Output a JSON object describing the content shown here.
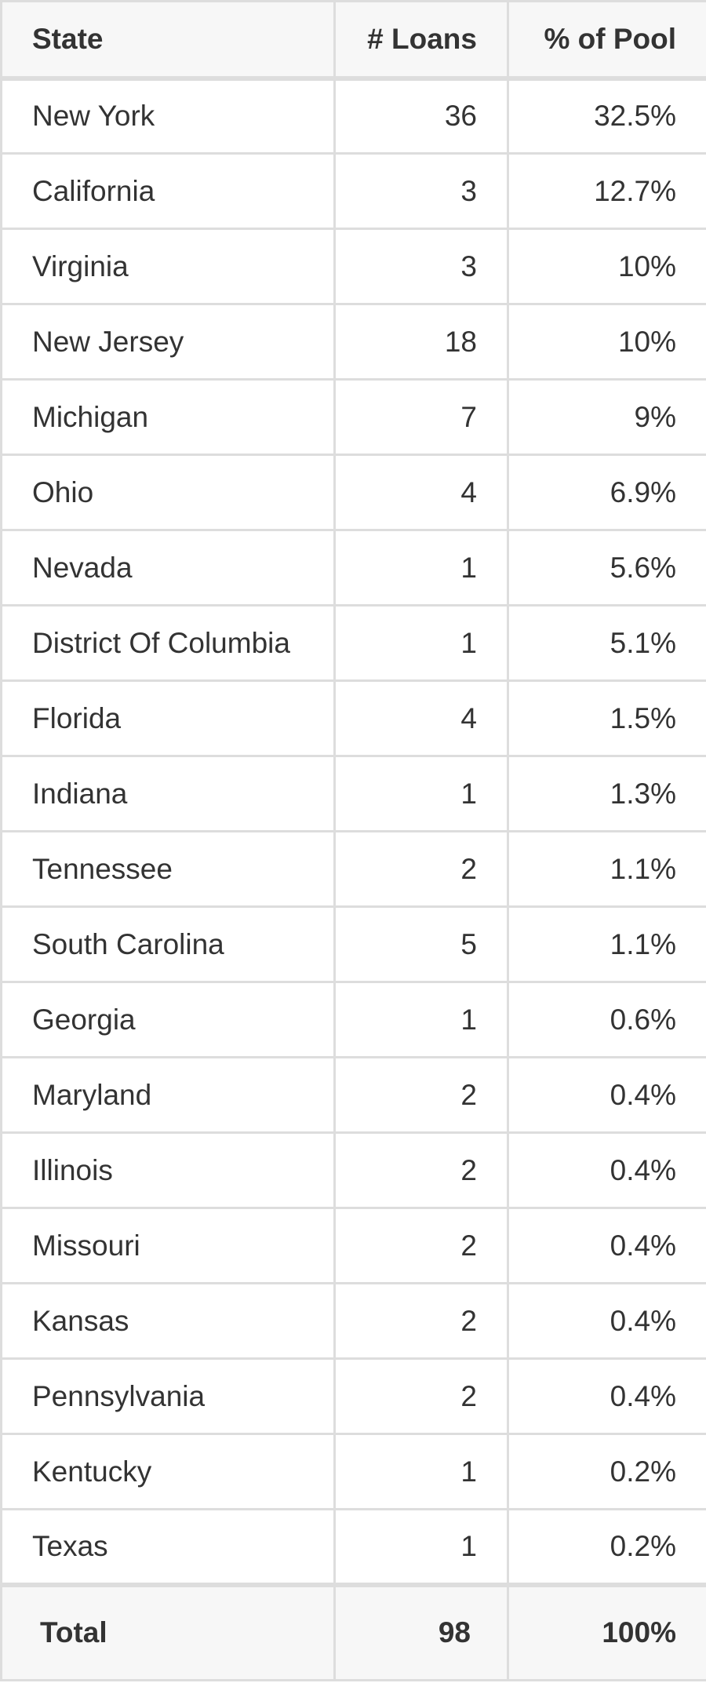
{
  "table": {
    "headers": {
      "state": "State",
      "loans": "# Loans",
      "pct": "% of Pool"
    },
    "rows": [
      {
        "state": "New York",
        "loans": "36",
        "pct": "32.5%"
      },
      {
        "state": "California",
        "loans": "3",
        "pct": "12.7%"
      },
      {
        "state": "Virginia",
        "loans": "3",
        "pct": "10%"
      },
      {
        "state": "New Jersey",
        "loans": "18",
        "pct": "10%"
      },
      {
        "state": "Michigan",
        "loans": "7",
        "pct": "9%"
      },
      {
        "state": "Ohio",
        "loans": "4",
        "pct": "6.9%"
      },
      {
        "state": "Nevada",
        "loans": "1",
        "pct": "5.6%"
      },
      {
        "state": "District Of Columbia",
        "loans": "1",
        "pct": "5.1%"
      },
      {
        "state": "Florida",
        "loans": "4",
        "pct": "1.5%"
      },
      {
        "state": "Indiana",
        "loans": "1",
        "pct": "1.3%"
      },
      {
        "state": "Tennessee",
        "loans": "2",
        "pct": "1.1%"
      },
      {
        "state": "South Carolina",
        "loans": "5",
        "pct": "1.1%"
      },
      {
        "state": "Georgia",
        "loans": "1",
        "pct": "0.6%"
      },
      {
        "state": "Maryland",
        "loans": "2",
        "pct": "0.4%"
      },
      {
        "state": "Illinois",
        "loans": "2",
        "pct": "0.4%"
      },
      {
        "state": "Missouri",
        "loans": "2",
        "pct": "0.4%"
      },
      {
        "state": "Kansas",
        "loans": "2",
        "pct": "0.4%"
      },
      {
        "state": "Pennsylvania",
        "loans": "2",
        "pct": "0.4%"
      },
      {
        "state": "Kentucky",
        "loans": "1",
        "pct": "0.2%"
      },
      {
        "state": "Texas",
        "loans": "1",
        "pct": "0.2%"
      }
    ],
    "total": {
      "label": "Total",
      "loans": "98",
      "pct": "100%"
    }
  }
}
